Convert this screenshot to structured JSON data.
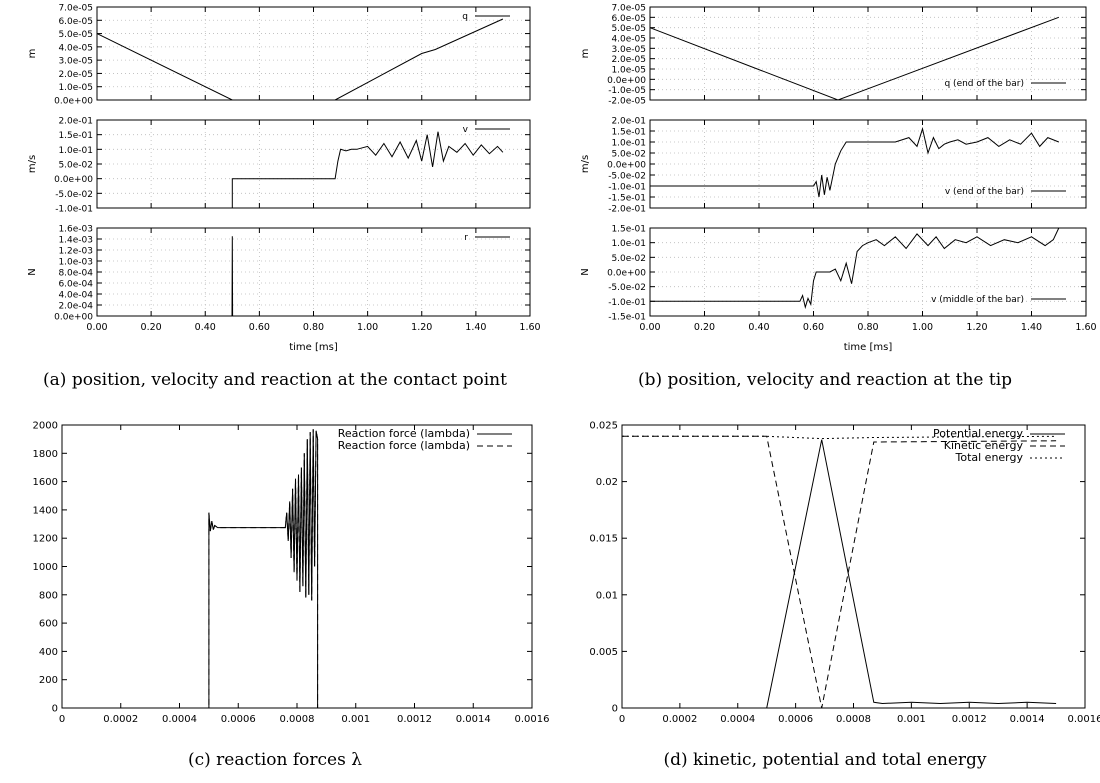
{
  "captions": {
    "a": "(a) position, velocity and reaction at the contact point",
    "b": "(b) position, velocity and reaction at the tip",
    "c": "(c) reaction forces λ",
    "d": "(d) kinetic, potential and total energy"
  },
  "chart_data": [
    {
      "id": "a",
      "type": "line",
      "xlabel": "time [ms]",
      "xlim": [
        0,
        1.6
      ],
      "xticks": [
        "0.00",
        "0.20",
        "0.40",
        "0.60",
        "0.80",
        "1.00",
        "1.20",
        "1.40",
        "1.60"
      ],
      "xgrid": true,
      "panels": [
        {
          "ylabel": "m",
          "ylim": [
            0,
            7e-05
          ],
          "yticks": [
            "7.0e-05",
            "6.0e-05",
            "5.0e-05",
            "4.0e-05",
            "3.0e-05",
            "2.0e-05",
            "1.0e-05",
            "0.0e+00"
          ],
          "series": [
            {
              "name": "q",
              "x": [
                0,
                0.5,
                0.88,
                1.2,
                1.25,
                1.5
              ],
              "y": [
                5e-05,
                0,
                0,
                3.5e-05,
                3.8e-05,
                6.1e-05
              ]
            }
          ]
        },
        {
          "ylabel": "m/s",
          "ylim": [
            -0.1,
            0.2
          ],
          "yticks": [
            "2.0e-01",
            "1.5e-01",
            "1.0e-01",
            "5.0e-02",
            "0.0e+00",
            "-5.0e-02",
            "-1.0e-01"
          ],
          "series": [
            {
              "name": "v",
              "x": [
                0.0,
                0.5,
                0.5,
                0.88,
                0.89,
                0.9,
                0.92,
                0.94,
                0.96,
                1.0,
                1.03,
                1.06,
                1.09,
                1.12,
                1.15,
                1.18,
                1.2,
                1.22,
                1.24,
                1.26,
                1.28,
                1.3,
                1.33,
                1.36,
                1.39,
                1.42,
                1.45,
                1.48,
                1.5
              ],
              "y": [
                -0.1,
                -0.1,
                0.0,
                0.0,
                0.06,
                0.1,
                0.095,
                0.1,
                0.1,
                0.11,
                0.08,
                0.12,
                0.075,
                0.125,
                0.07,
                0.13,
                0.06,
                0.15,
                0.04,
                0.16,
                0.06,
                0.11,
                0.09,
                0.12,
                0.08,
                0.115,
                0.085,
                0.11,
                0.09
              ]
            }
          ]
        },
        {
          "ylabel": "N",
          "ylim": [
            0,
            0.0016
          ],
          "yticks": [
            "1.6e-03",
            "1.4e-03",
            "1.2e-03",
            "1.0e-03",
            "8.0e-04",
            "6.0e-04",
            "4.0e-04",
            "2.0e-04",
            "0.0e+00"
          ],
          "series": [
            {
              "name": "r",
              "x": [
                0.0,
                0.499,
                0.5,
                0.501,
                1.5
              ],
              "y": [
                0,
                0,
                0.00145,
                0,
                0
              ]
            }
          ]
        }
      ]
    },
    {
      "id": "b",
      "type": "line",
      "xlabel": "time [ms]",
      "xlim": [
        0,
        1.6
      ],
      "xticks": [
        "0.00",
        "0.20",
        "0.40",
        "0.60",
        "0.80",
        "1.00",
        "1.20",
        "1.40",
        "1.60"
      ],
      "xgrid": true,
      "panels": [
        {
          "ylabel": "m",
          "ylim": [
            -2e-05,
            7e-05
          ],
          "yticks": [
            "7.0e-05",
            "6.0e-05",
            "5.0e-05",
            "4.0e-05",
            "3.0e-05",
            "2.0e-05",
            "1.0e-05",
            "0.0e+00",
            "-1.0e-05",
            "-2.0e-05"
          ],
          "legend_position": "bottom-right",
          "series": [
            {
              "name": "q (end of the bar)",
              "x": [
                0,
                0.69,
                1.5
              ],
              "y": [
                5e-05,
                -2e-05,
                6e-05
              ]
            }
          ]
        },
        {
          "ylabel": "m/s",
          "ylim": [
            -0.2,
            0.2
          ],
          "yticks": [
            "2.0e-01",
            "1.5e-01",
            "1.0e-01",
            "5.0e-02",
            "0.0e+00",
            "-5.0e-02",
            "-1.0e-01",
            "-1.5e-01",
            "-2.0e-01"
          ],
          "legend_position": "bottom-right",
          "series": [
            {
              "name": "v (end of the bar)",
              "x": [
                0.0,
                0.6,
                0.61,
                0.62,
                0.63,
                0.64,
                0.65,
                0.66,
                0.68,
                0.7,
                0.72,
                0.75,
                0.8,
                0.85,
                0.9,
                0.95,
                0.98,
                1.0,
                1.02,
                1.04,
                1.06,
                1.08,
                1.1,
                1.13,
                1.16,
                1.2,
                1.24,
                1.28,
                1.32,
                1.36,
                1.4,
                1.43,
                1.46,
                1.5
              ],
              "y": [
                -0.1,
                -0.1,
                -0.08,
                -0.15,
                -0.05,
                -0.14,
                -0.06,
                -0.12,
                0.0,
                0.06,
                0.1,
                0.1,
                0.1,
                0.1,
                0.1,
                0.12,
                0.08,
                0.16,
                0.05,
                0.12,
                0.07,
                0.09,
                0.1,
                0.11,
                0.09,
                0.1,
                0.12,
                0.08,
                0.11,
                0.09,
                0.14,
                0.08,
                0.12,
                0.1
              ]
            }
          ]
        },
        {
          "ylabel": "N",
          "ylim": [
            -0.15,
            0.15
          ],
          "yticks": [
            "1.5e-01",
            "1.0e-01",
            "5.0e-02",
            "0.0e+00",
            "-5.0e-02",
            "-1.0e-01",
            "-1.5e-01"
          ],
          "legend_position": "bottom-right",
          "series": [
            {
              "name": "v (middle of the bar)",
              "x": [
                0.0,
                0.55,
                0.56,
                0.57,
                0.58,
                0.59,
                0.6,
                0.61,
                0.62,
                0.64,
                0.66,
                0.68,
                0.7,
                0.72,
                0.74,
                0.76,
                0.78,
                0.8,
                0.83,
                0.86,
                0.9,
                0.94,
                0.98,
                1.02,
                1.05,
                1.08,
                1.12,
                1.16,
                1.2,
                1.25,
                1.3,
                1.35,
                1.4,
                1.45,
                1.48,
                1.5
              ],
              "y": [
                -0.1,
                -0.1,
                -0.08,
                -0.12,
                -0.09,
                -0.11,
                -0.03,
                0.0,
                0.0,
                0.0,
                0.0,
                0.01,
                -0.03,
                0.03,
                -0.04,
                0.07,
                0.09,
                0.1,
                0.11,
                0.09,
                0.12,
                0.08,
                0.13,
                0.09,
                0.12,
                0.08,
                0.11,
                0.1,
                0.12,
                0.09,
                0.11,
                0.1,
                0.12,
                0.09,
                0.11,
                0.15
              ]
            }
          ]
        }
      ]
    },
    {
      "id": "c",
      "type": "line",
      "xlim": [
        0,
        0.0016
      ],
      "ylim": [
        0,
        2000
      ],
      "xticks": [
        "0",
        "0.0002",
        "0.0004",
        "0.0006",
        "0.0008",
        "0.001",
        "0.0012",
        "0.0014",
        "0.0016"
      ],
      "yticks": [
        "0",
        "200",
        "400",
        "600",
        "800",
        "1000",
        "1200",
        "1400",
        "1600",
        "1800",
        "2000"
      ],
      "legend_position": "top-right",
      "series": [
        {
          "name": "Reaction force (lambda)",
          "dash": "solid",
          "x": [
            0,
            0.0005,
            0.0005,
            0.000505,
            0.00051,
            0.000515,
            0.00052,
            0.00053,
            0.00076,
            0.000765,
            0.00077,
            0.000775,
            0.00078,
            0.000785,
            0.00079,
            0.000795,
            0.0008,
            0.000805,
            0.00081,
            0.000815,
            0.00082,
            0.000825,
            0.00083,
            0.000835,
            0.00084,
            0.000845,
            0.00085,
            0.000855,
            0.00086,
            0.000865,
            0.00087,
            0.00087,
            0.0015
          ],
          "y": [
            0,
            0,
            1380,
            1250,
            1320,
            1260,
            1290,
            1275,
            1275,
            1380,
            1180,
            1460,
            1060,
            1550,
            960,
            1620,
            900,
            1650,
            820,
            1700,
            860,
            1800,
            780,
            1900,
            800,
            1950,
            760,
            1970,
            1000,
            1960,
            1900,
            0,
            0
          ]
        },
        {
          "name": "Reaction force (lambda)",
          "dash": "dashed",
          "x": [
            0,
            0.0005,
            0.0005,
            0.000505,
            0.00051,
            0.000515,
            0.00052,
            0.00053,
            0.00076,
            0.000765,
            0.00077,
            0.000775,
            0.00078,
            0.000785,
            0.00079,
            0.000795,
            0.0008,
            0.000805,
            0.00081,
            0.000815,
            0.00082,
            0.000825,
            0.00083,
            0.000835,
            0.00084,
            0.000845,
            0.00085,
            0.000855,
            0.00086,
            0.000865,
            0.00087,
            0.00087,
            0.0015
          ],
          "y": [
            0,
            0,
            1380,
            1250,
            1320,
            1260,
            1290,
            1275,
            1275,
            1380,
            1180,
            1460,
            1060,
            1550,
            960,
            1620,
            900,
            1650,
            820,
            1700,
            860,
            1800,
            780,
            1900,
            800,
            1950,
            760,
            1970,
            1000,
            1960,
            1900,
            0,
            0
          ]
        }
      ]
    },
    {
      "id": "d",
      "type": "line",
      "xlim": [
        0,
        0.0016
      ],
      "ylim": [
        0,
        0.025
      ],
      "xticks": [
        "0",
        "0.0002",
        "0.0004",
        "0.0006",
        "0.0008",
        "0.001",
        "0.0012",
        "0.0014",
        "0.0016"
      ],
      "yticks": [
        "0",
        "0.005",
        "0.01",
        "0.015",
        "0.02",
        "0.025"
      ],
      "legend_position": "top-right",
      "series": [
        {
          "name": "Potential energy",
          "dash": "solid",
          "x": [
            0,
            0.0005,
            0.00069,
            0.00087,
            0.0009,
            0.001,
            0.0011,
            0.0012,
            0.0013,
            0.0014,
            0.0015
          ],
          "y": [
            0,
            0,
            0.0237,
            0.0005,
            0.0004,
            0.0005,
            0.0004,
            0.0005,
            0.0004,
            0.0005,
            0.0004
          ]
        },
        {
          "name": "Kinetic energy",
          "dash": "dashed",
          "x": [
            0,
            0.0005,
            0.00069,
            0.00087,
            0.0015
          ],
          "y": [
            0.024,
            0.024,
            0,
            0.0235,
            0.0236
          ]
        },
        {
          "name": "Total energy",
          "dash": "dotted",
          "x": [
            0,
            0.0005,
            0.00069,
            0.00087,
            0.0015
          ],
          "y": [
            0.024,
            0.024,
            0.0238,
            0.0239,
            0.024
          ]
        }
      ]
    }
  ]
}
